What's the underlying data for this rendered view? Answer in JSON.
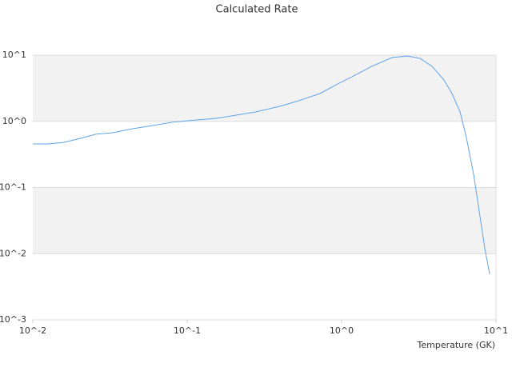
{
  "chart_data": {
    "type": "line",
    "title": "Calculated Rate",
    "x_label": "Temperature (GK)",
    "x": [
      0.01,
      0.0126,
      0.0158,
      0.0202,
      0.0257,
      0.0326,
      0.0439,
      0.0592,
      0.0798,
      0.101,
      0.154,
      0.195,
      0.279,
      0.399,
      0.507,
      0.724,
      0.92,
      1.17,
      1.57,
      2.12,
      2.69,
      3.22,
      3.85,
      4.6,
      5.19,
      5.85,
      6.43,
      7.16,
      7.87,
      8.45,
      9.1
    ],
    "series": [
      {
        "color": "#5ea3e8",
        "values": [
          0.456,
          0.456,
          0.48,
          0.55,
          0.64,
          0.67,
          0.77,
          0.86,
          0.97,
          1.02,
          1.11,
          1.21,
          1.39,
          1.69,
          1.99,
          2.63,
          3.57,
          4.72,
          6.78,
          9.2,
          9.7,
          8.95,
          6.78,
          4.22,
          2.63,
          1.39,
          0.57,
          0.158,
          0.037,
          0.0123,
          0.0049
        ]
      }
    ],
    "xlog": true,
    "ylog": true,
    "xlim": [
      0.01,
      10
    ],
    "ylim": [
      0.001,
      10
    ],
    "xticks": [
      {
        "value": 0.01,
        "label": "10^-2"
      },
      {
        "value": 0.1,
        "label": "10^-1"
      },
      {
        "value": 1,
        "label": "10^0"
      },
      {
        "value": 10,
        "label": "10^1"
      }
    ],
    "yticks": [
      {
        "value": 0.001,
        "label": "10^-3"
      },
      {
        "value": 0.01,
        "label": "10^-2"
      },
      {
        "value": 0.1,
        "label": "10^-1"
      },
      {
        "value": 1,
        "label": "10^0"
      },
      {
        "value": 10,
        "label": "10^1"
      }
    ],
    "grid": true,
    "band_color": "#f2f2f2"
  }
}
